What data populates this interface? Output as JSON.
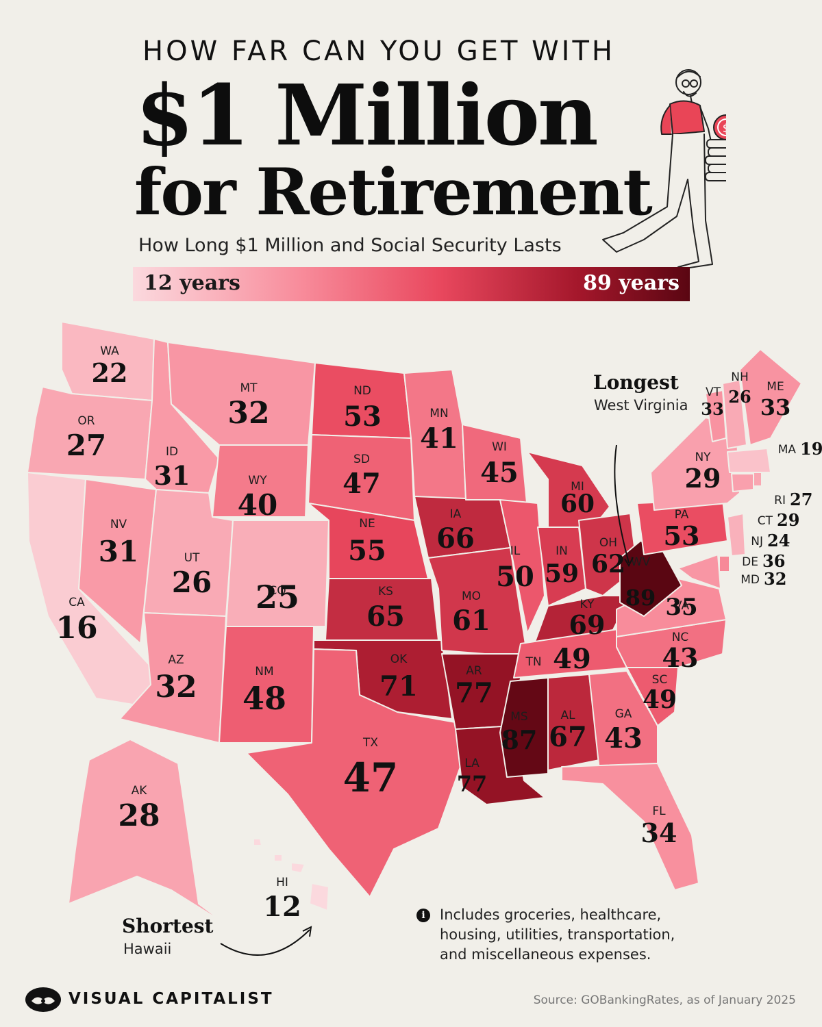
{
  "header": {
    "kicker": "HOW FAR CAN YOU GET WITH",
    "title_line1": "$1 Million",
    "title_line2": "for Retirement",
    "subtitle": "How Long $1 Million and Social Security Lasts"
  },
  "legend": {
    "min_label": "12 years",
    "max_label": "89 years",
    "min_value": 12,
    "max_value": 89,
    "colors": [
      "#fbd9de",
      "#f88c9b",
      "#e9485e",
      "#a4172b",
      "#5a0612"
    ]
  },
  "callouts": {
    "longest": {
      "heading": "Longest",
      "state": "West Virginia"
    },
    "shortest": {
      "heading": "Shortest",
      "state": "Hawaii"
    }
  },
  "note": "Includes groceries, healthcare, housing, utilities, transportation, and miscellaneous expenses.",
  "footer": {
    "brand": "VISUAL CAPITALIST",
    "source": "Source: GOBankingRates, as of January 2025"
  },
  "states": [
    {
      "abbr": "WA",
      "years": 22
    },
    {
      "abbr": "OR",
      "years": 27
    },
    {
      "abbr": "CA",
      "years": 16
    },
    {
      "abbr": "NV",
      "years": 31
    },
    {
      "abbr": "ID",
      "years": 31
    },
    {
      "abbr": "MT",
      "years": 32
    },
    {
      "abbr": "WY",
      "years": 40
    },
    {
      "abbr": "UT",
      "years": 26
    },
    {
      "abbr": "CO",
      "years": 25
    },
    {
      "abbr": "AZ",
      "years": 32
    },
    {
      "abbr": "NM",
      "years": 48
    },
    {
      "abbr": "ND",
      "years": 53
    },
    {
      "abbr": "SD",
      "years": 47
    },
    {
      "abbr": "NE",
      "years": 55
    },
    {
      "abbr": "KS",
      "years": 65
    },
    {
      "abbr": "OK",
      "years": 71
    },
    {
      "abbr": "TX",
      "years": 47
    },
    {
      "abbr": "MN",
      "years": 41
    },
    {
      "abbr": "IA",
      "years": 66
    },
    {
      "abbr": "MO",
      "years": 61
    },
    {
      "abbr": "AR",
      "years": 77
    },
    {
      "abbr": "LA",
      "years": 77
    },
    {
      "abbr": "WI",
      "years": 45
    },
    {
      "abbr": "IL",
      "years": 50
    },
    {
      "abbr": "MI",
      "years": 60
    },
    {
      "abbr": "IN",
      "years": 59
    },
    {
      "abbr": "OH",
      "years": 62
    },
    {
      "abbr": "KY",
      "years": 69
    },
    {
      "abbr": "TN",
      "years": 49
    },
    {
      "abbr": "MS",
      "years": 87
    },
    {
      "abbr": "AL",
      "years": 67
    },
    {
      "abbr": "GA",
      "years": 43
    },
    {
      "abbr": "FL",
      "years": 34
    },
    {
      "abbr": "SC",
      "years": 49
    },
    {
      "abbr": "NC",
      "years": 43
    },
    {
      "abbr": "VA",
      "years": 35
    },
    {
      "abbr": "WV",
      "years": 89
    },
    {
      "abbr": "PA",
      "years": 53
    },
    {
      "abbr": "NY",
      "years": 29
    },
    {
      "abbr": "VT",
      "years": 33
    },
    {
      "abbr": "NH",
      "years": 26
    },
    {
      "abbr": "ME",
      "years": 33
    },
    {
      "abbr": "MA",
      "years": 19
    },
    {
      "abbr": "RI",
      "years": 27
    },
    {
      "abbr": "CT",
      "years": 29
    },
    {
      "abbr": "NJ",
      "years": 24
    },
    {
      "abbr": "DE",
      "years": 36
    },
    {
      "abbr": "MD",
      "years": 32
    },
    {
      "abbr": "AK",
      "years": 28
    },
    {
      "abbr": "HI",
      "years": 12
    }
  ]
}
